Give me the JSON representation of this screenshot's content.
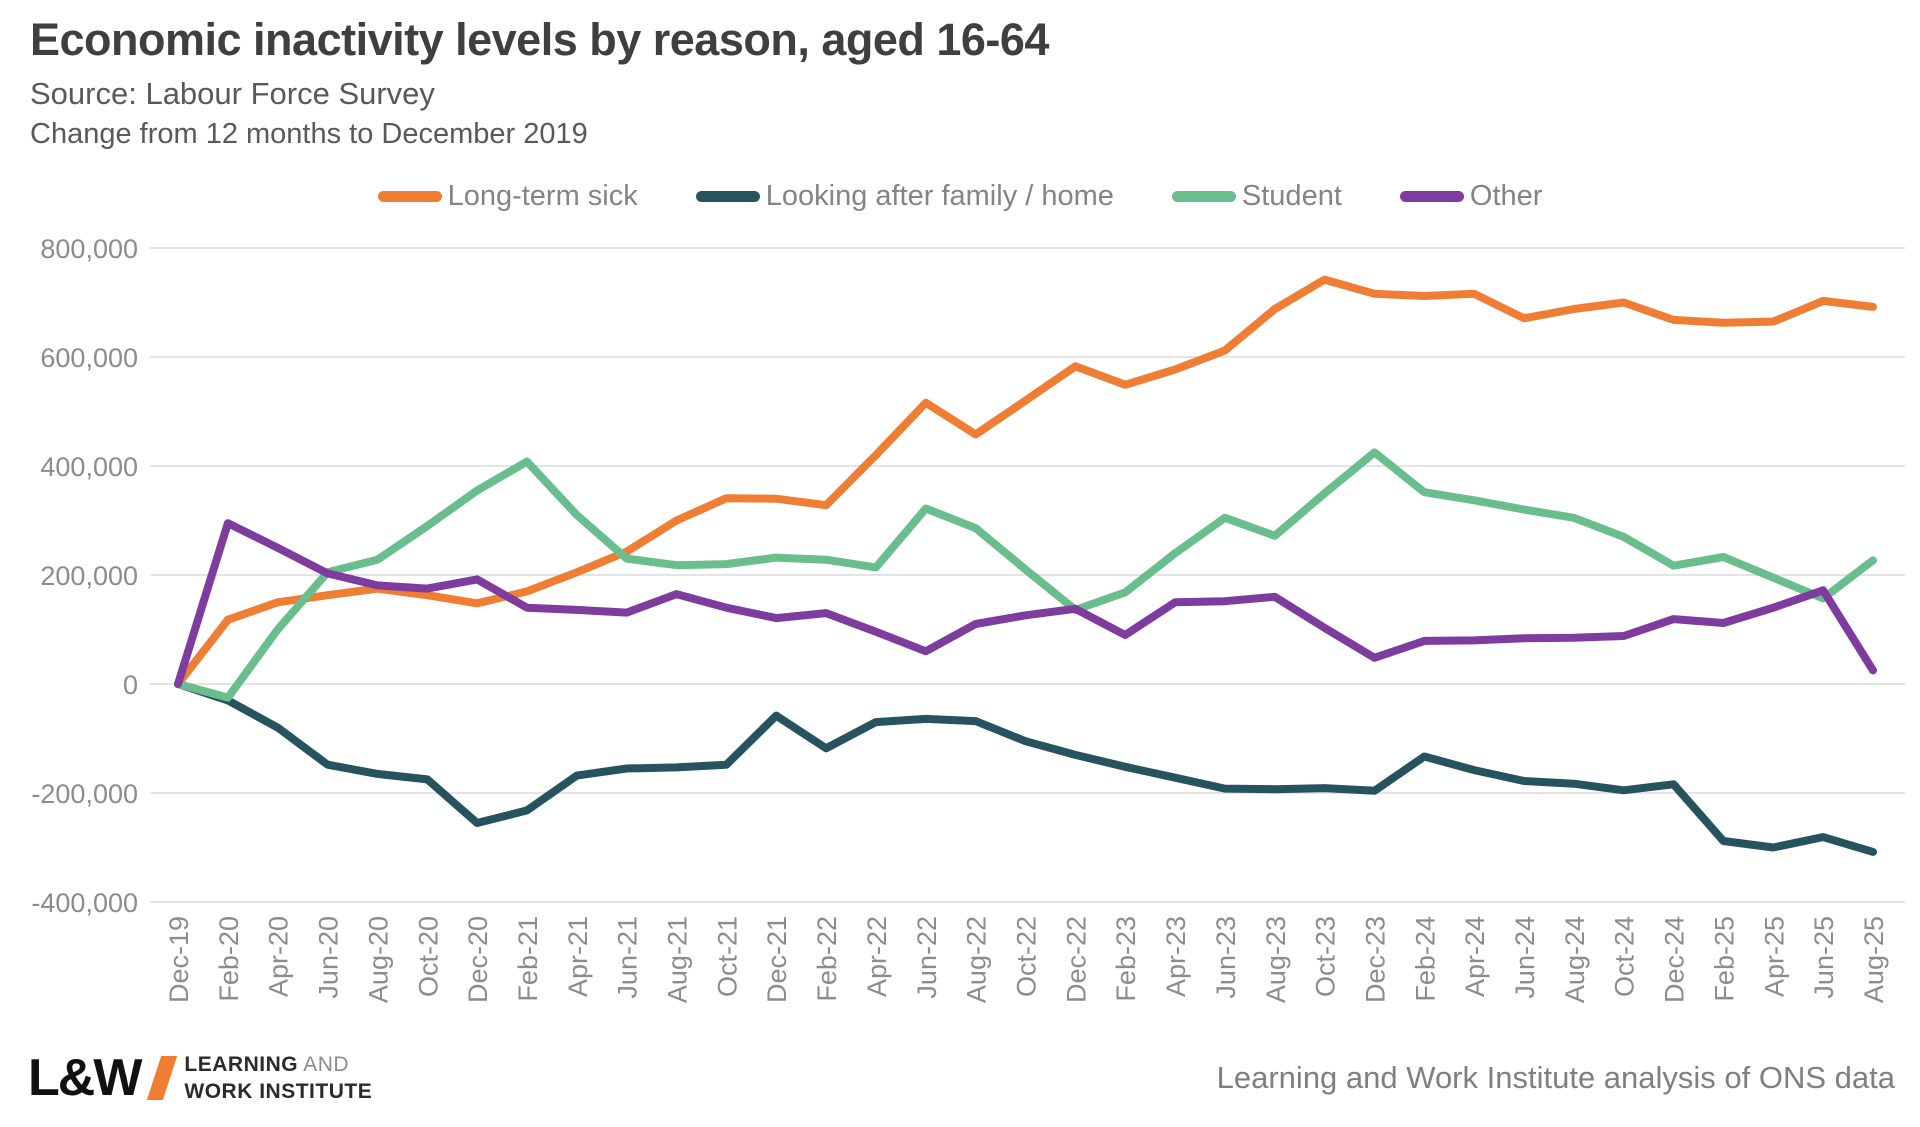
{
  "header": {
    "title": "Economic inactivity levels by reason, aged 16-64",
    "source": "Source: Labour Force Survey",
    "note": "Change from 12 months to December 2019"
  },
  "chart_data": {
    "type": "line",
    "title": "Economic inactivity levels by reason, aged 16-64",
    "xlabel": "",
    "ylabel": "",
    "ylim": [
      -400000,
      800000
    ],
    "ytick_step": 200000,
    "grid": "horizontal",
    "legend_position": "top",
    "categories": [
      "Dec-19",
      "Feb-20",
      "Apr-20",
      "Jun-20",
      "Aug-20",
      "Oct-20",
      "Dec-20",
      "Feb-21",
      "Apr-21",
      "Jun-21",
      "Aug-21",
      "Oct-21",
      "Dec-21",
      "Feb-22",
      "Apr-22",
      "Jun-22",
      "Aug-22",
      "Oct-22",
      "Dec-22",
      "Feb-23",
      "Apr-23",
      "Jun-23",
      "Aug-23",
      "Oct-23",
      "Dec-23",
      "Feb-24",
      "Apr-24",
      "Jun-24",
      "Aug-24",
      "Oct-24",
      "Dec-24",
      "Feb-25",
      "Apr-25",
      "Jun-25",
      "Aug-25"
    ],
    "series": [
      {
        "name": "Long-term sick",
        "color": "#ef7d33",
        "values": [
          0,
          118000,
          150000,
          163000,
          175000,
          163000,
          148000,
          170000,
          205000,
          243000,
          300000,
          341000,
          340000,
          328000,
          420000,
          516000,
          458000,
          520000,
          583000,
          549000,
          577000,
          612000,
          688000,
          742000,
          716000,
          712000,
          716000,
          671000,
          688000,
          700000,
          668000,
          663000,
          665000,
          703000,
          692000
        ]
      },
      {
        "name": "Looking after family / home",
        "color": "#27535f",
        "values": [
          0,
          -30000,
          -80000,
          -148000,
          -165000,
          -175000,
          -255000,
          -232000,
          -168000,
          -155000,
          -153000,
          -148000,
          -58000,
          -118000,
          -70000,
          -64000,
          -68000,
          -105000,
          -130000,
          -152000,
          -172000,
          -192000,
          -193000,
          -191000,
          -196000,
          -133000,
          -158000,
          -178000,
          -183000,
          -195000,
          -184000,
          -288000,
          -300000,
          -281000,
          -308000
        ]
      },
      {
        "name": "Student",
        "color": "#6abd8d",
        "values": [
          0,
          -25000,
          100000,
          205000,
          228000,
          290000,
          355000,
          408000,
          310000,
          230000,
          218000,
          220000,
          232000,
          228000,
          214000,
          322000,
          286000,
          210000,
          136000,
          168000,
          240000,
          305000,
          272000,
          350000,
          425000,
          352000,
          337000,
          320000,
          305000,
          270000,
          217000,
          233000,
          195000,
          157000,
          227000
        ]
      },
      {
        "name": "Other",
        "color": "#7e3c9e",
        "values": [
          0,
          295000,
          250000,
          203000,
          181000,
          175000,
          192000,
          140000,
          136000,
          131000,
          165000,
          140000,
          121000,
          130000,
          96000,
          60000,
          110000,
          126000,
          138000,
          90000,
          150000,
          152000,
          160000,
          103000,
          48000,
          79000,
          80000,
          84000,
          85000,
          88000,
          119000,
          112000,
          140000,
          172000,
          25000
        ]
      }
    ]
  },
  "footer": {
    "logo_mark": "L&W",
    "logo_line1_strong": "LEARNING",
    "logo_line1_light": " AND",
    "logo_line2_strong": "WORK INSTITUTE",
    "attribution": "Learning and Work Institute analysis of ONS data"
  }
}
